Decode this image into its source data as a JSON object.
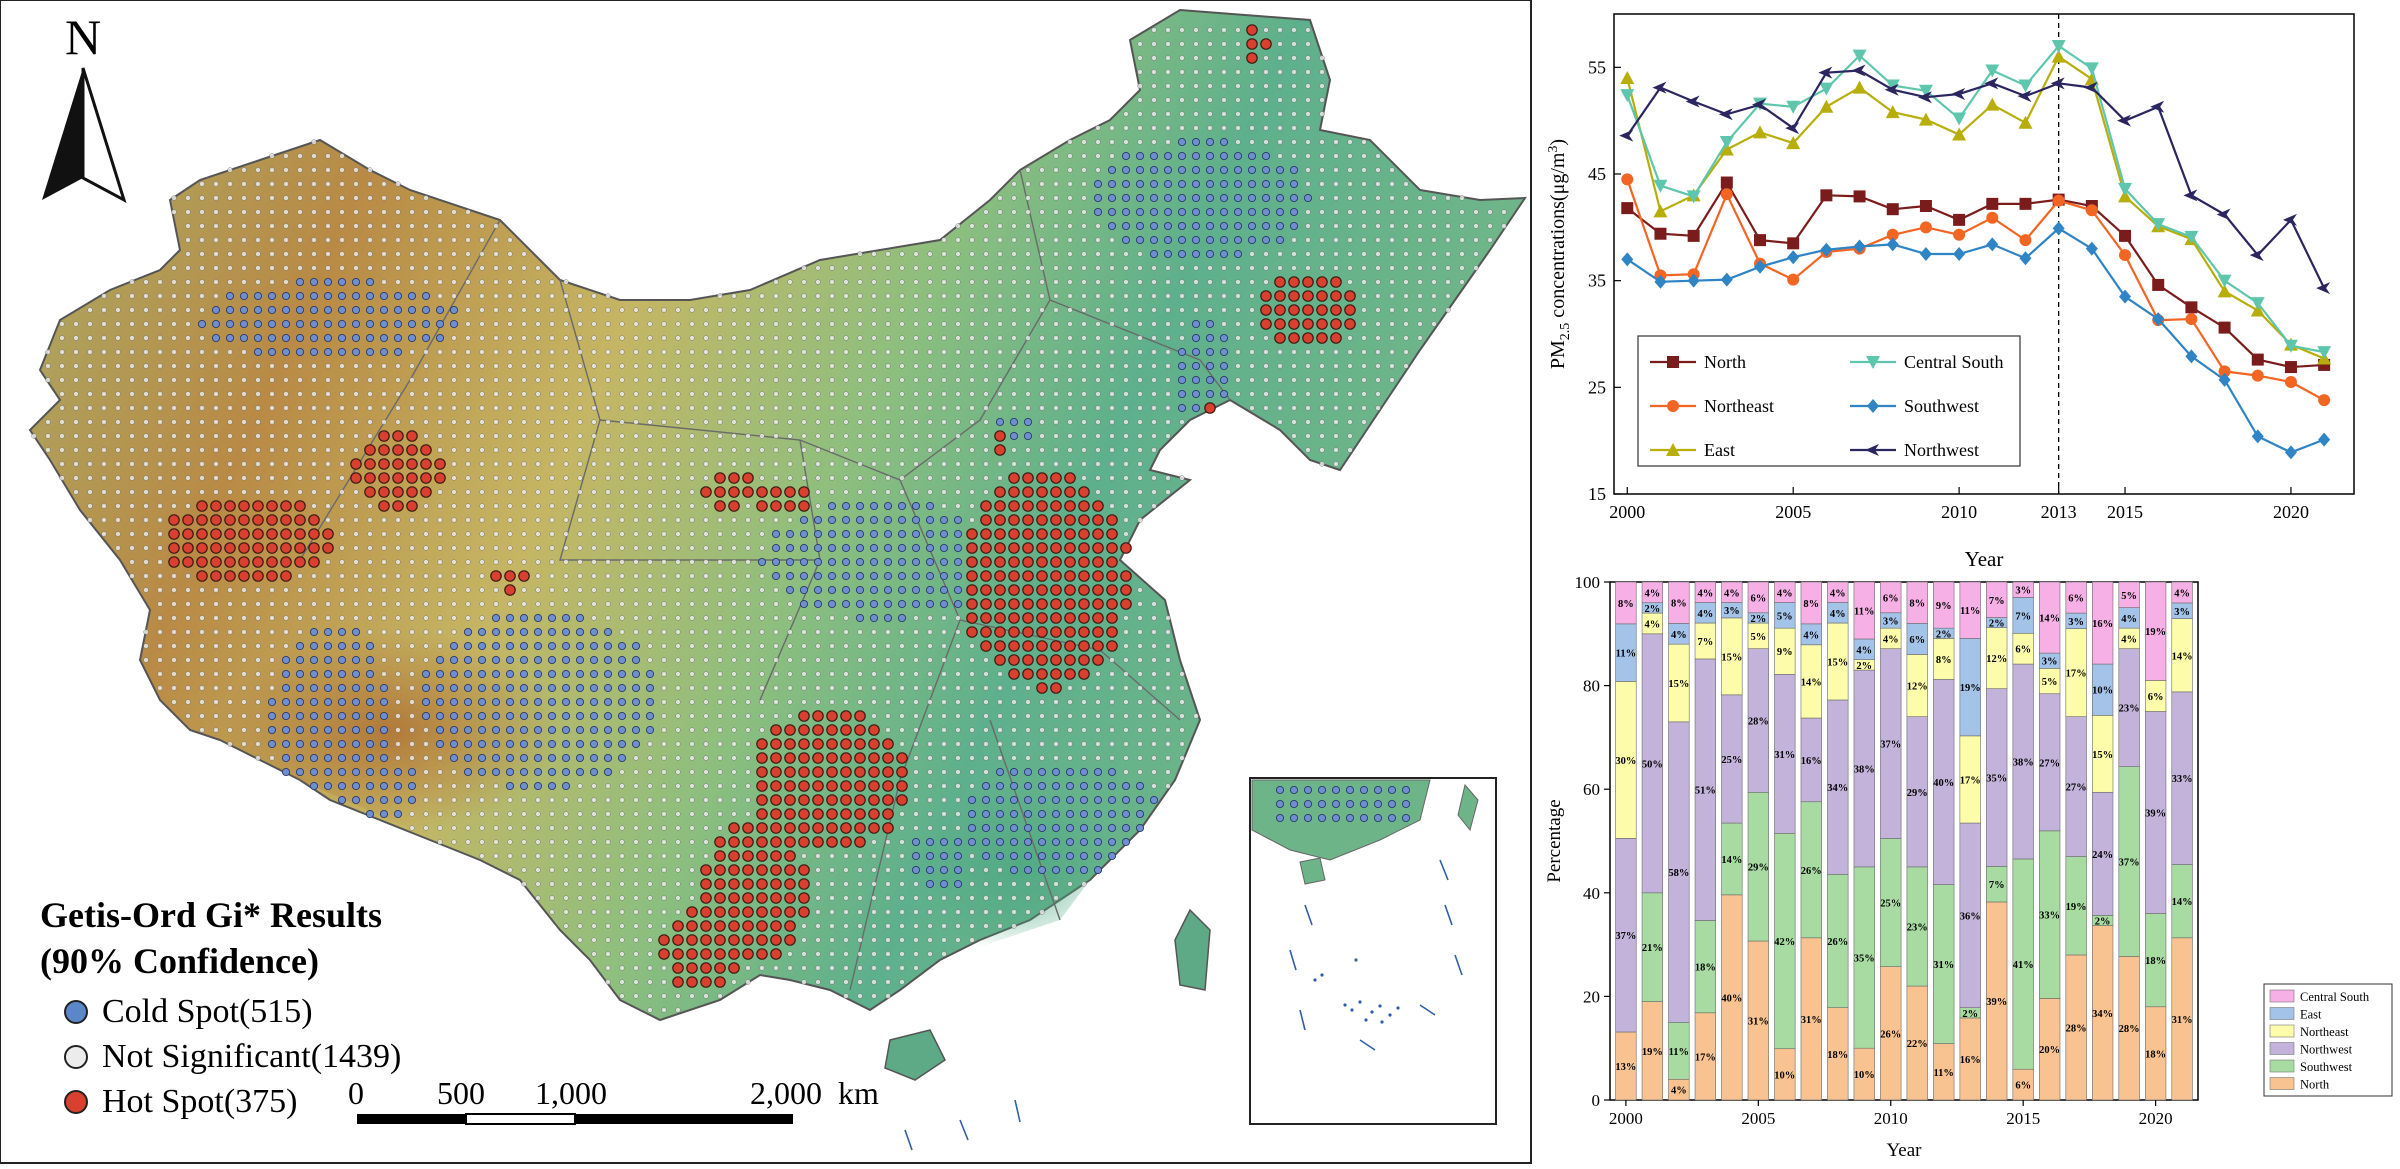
{
  "map": {
    "north_label": "N",
    "legend_title_line1": "Getis-Ord Gi* Results",
    "legend_title_line2": "(90% Confidence)",
    "legend_items": [
      {
        "label": "Cold Spot(515)",
        "color": "#5b86c8"
      },
      {
        "label": "Not Significant(1439)",
        "color": "#ececec"
      },
      {
        "label": "Hot Spot(375)",
        "color": "#d9402f"
      }
    ],
    "scale_labels": [
      "0",
      "500",
      "1,000",
      "2,000",
      "km"
    ],
    "colors": {
      "terrain_high": "#b47a3a",
      "terrain_mid": "#c9c46a",
      "terrain_low": "#5fae86",
      "border": "#6a6a6a"
    }
  },
  "chart_data": [
    {
      "type": "line",
      "xlabel": "Year",
      "ylabel": "PM2.5 concentrations(μg/m³)",
      "ylabel_main": "PM",
      "ylabel_sub": "2.5",
      "ylabel_rest": " concentrations(μg/m",
      "ylabel_sup": "3",
      "ylabel_end": ")",
      "xlim": [
        1999.6,
        2021.9
      ],
      "ylim": [
        15,
        60
      ],
      "xticks": [
        2000,
        2005,
        2010,
        2013,
        2015,
        2020
      ],
      "yticks": [
        15,
        25,
        35,
        45,
        55
      ],
      "reference_line_x": 2013,
      "x": [
        2000,
        2001,
        2002,
        2003,
        2004,
        2005,
        2006,
        2007,
        2008,
        2009,
        2010,
        2011,
        2012,
        2013,
        2014,
        2015,
        2016,
        2017,
        2018,
        2019,
        2020,
        2021
      ],
      "series": [
        {
          "name": "North",
          "color": "#7b1c1c",
          "marker": "square",
          "values": [
            41.8,
            39.4,
            39.2,
            44.2,
            38.8,
            38.5,
            43.0,
            42.9,
            41.7,
            42.0,
            40.7,
            42.2,
            42.2,
            42.6,
            42.0,
            39.2,
            34.6,
            32.5,
            30.6,
            27.6,
            26.9,
            27.1
          ]
        },
        {
          "name": "Northeast",
          "color": "#f26522",
          "marker": "circle",
          "values": [
            44.5,
            35.5,
            35.6,
            43.1,
            36.6,
            35.1,
            37.7,
            38.0,
            39.3,
            40.0,
            39.3,
            40.9,
            38.8,
            42.5,
            41.6,
            37.4,
            31.3,
            31.4,
            26.5,
            26.1,
            25.5,
            23.8
          ]
        },
        {
          "name": "East",
          "color": "#b8ae0a",
          "marker": "triangle",
          "values": [
            54.0,
            41.5,
            43.0,
            47.3,
            48.9,
            47.9,
            51.3,
            53.1,
            50.8,
            50.1,
            48.7,
            51.5,
            49.8,
            56.0,
            53.9,
            42.9,
            40.1,
            38.9,
            34.0,
            32.2,
            29.0,
            27.7
          ]
        },
        {
          "name": "Central South",
          "color": "#5fc6ae",
          "marker": "triangle-down",
          "values": [
            52.4,
            43.9,
            42.9,
            48.0,
            51.6,
            51.3,
            53.0,
            56.1,
            53.3,
            52.8,
            50.2,
            54.7,
            53.3,
            57.0,
            54.9,
            43.6,
            40.3,
            39.1,
            35.0,
            32.9,
            28.9,
            28.3
          ]
        },
        {
          "name": "Southwest",
          "color": "#2f84c5",
          "marker": "diamond",
          "values": [
            37.0,
            34.9,
            35.0,
            35.1,
            36.3,
            37.2,
            37.9,
            38.2,
            38.4,
            37.5,
            37.5,
            38.4,
            37.1,
            39.9,
            38.0,
            33.5,
            31.4,
            27.9,
            25.7,
            20.4,
            18.9,
            20.1
          ]
        },
        {
          "name": "Northwest",
          "color": "#2b2560",
          "marker": "arrow",
          "values": [
            48.6,
            53.1,
            51.8,
            50.6,
            51.5,
            49.3,
            54.5,
            54.7,
            52.9,
            52.2,
            52.5,
            53.5,
            52.3,
            53.5,
            53.1,
            50.0,
            51.3,
            43.0,
            41.2,
            37.4,
            40.7,
            34.3
          ]
        }
      ]
    },
    {
      "type": "bar",
      "stacked": true,
      "xlabel": "Year",
      "ylabel": "Percentage",
      "ylim": [
        0,
        100
      ],
      "xticks": [
        2000,
        2005,
        2010,
        2015,
        2020
      ],
      "yticks": [
        0,
        20,
        40,
        60,
        80,
        100
      ],
      "categories": [
        2000,
        2001,
        2002,
        2003,
        2004,
        2005,
        2006,
        2007,
        2008,
        2009,
        2010,
        2011,
        2012,
        2013,
        2014,
        2015,
        2016,
        2017,
        2018,
        2019,
        2020,
        2021
      ],
      "series": [
        {
          "name": "North",
          "color": "#f8c391",
          "values": [
            13,
            19,
            4,
            17,
            40,
            31,
            10,
            31,
            18,
            10,
            26,
            22,
            11,
            16,
            39,
            6,
            20,
            28,
            34,
            28,
            18,
            31
          ]
        },
        {
          "name": "Southwest",
          "color": "#a8dba2",
          "values": [
            0,
            21,
            11,
            18,
            14,
            29,
            42,
            26,
            26,
            35,
            25,
            23,
            31,
            2,
            7,
            41,
            33,
            19,
            2,
            37,
            18,
            14
          ]
        },
        {
          "name": "Northwest",
          "color": "#c3b3da",
          "values": [
            37,
            50,
            58,
            51,
            25,
            28,
            31,
            16,
            34,
            38,
            37,
            29,
            40,
            36,
            35,
            38,
            27,
            27,
            24,
            23,
            39,
            33
          ]
        },
        {
          "name": "Northeast",
          "color": "#fcfcaa",
          "values": [
            30,
            4,
            15,
            7,
            15,
            5,
            9,
            14,
            15,
            2,
            4,
            12,
            8,
            17,
            12,
            6,
            5,
            17,
            15,
            4,
            6,
            14
          ]
        },
        {
          "name": "East",
          "color": "#a4c3e8",
          "values": [
            11,
            2,
            4,
            4,
            3,
            2,
            5,
            4,
            4,
            4,
            3,
            6,
            2,
            19,
            2,
            7,
            3,
            3,
            10,
            4,
            0,
            3
          ]
        },
        {
          "name": "Central South",
          "color": "#f6b0e6",
          "values": [
            8,
            4,
            8,
            4,
            4,
            6,
            4,
            8,
            4,
            11,
            6,
            8,
            9,
            11,
            7,
            3,
            14,
            6,
            16,
            5,
            19,
            4
          ]
        }
      ],
      "labels_hidden": [
        {
          "series": "Southwest",
          "index": 0
        }
      ]
    }
  ]
}
